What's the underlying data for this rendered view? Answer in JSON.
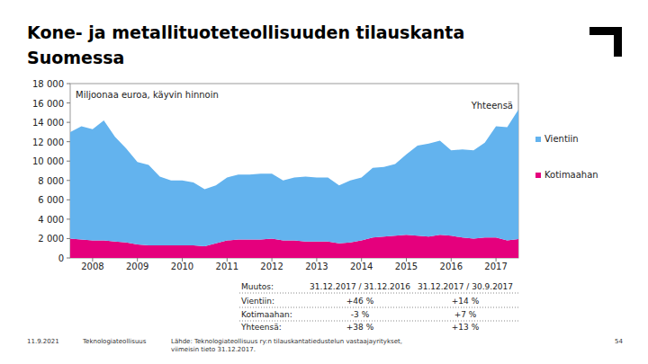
{
  "chart_data": {
    "type": "area",
    "title": [
      "Kone- ja metallituoteteollisuuden tilauskanta",
      "Suomessa"
    ],
    "annotations": [
      "Miljoonaa euroa, käyvin hinnoin",
      "Yhteensä"
    ],
    "stacked": true,
    "grid": false,
    "legend": "right",
    "categories": [
      null,
      null,
      "2008",
      null,
      null,
      null,
      "2009",
      null,
      null,
      null,
      "2010",
      null,
      null,
      null,
      "2011",
      null,
      null,
      null,
      "2012",
      null,
      null,
      null,
      "2013",
      null,
      null,
      null,
      "2014",
      null,
      null,
      null,
      "2015",
      null,
      null,
      null,
      "2016",
      null,
      null,
      null,
      "2017",
      null,
      null
    ],
    "series": [
      {
        "name": "Kotimaahan",
        "color": "#e5007d",
        "values": [
          2000,
          1900,
          1800,
          1800,
          1700,
          1600,
          1400,
          1300,
          1300,
          1300,
          1300,
          1300,
          1200,
          1500,
          1800,
          1900,
          1900,
          1900,
          2000,
          1800,
          1800,
          1700,
          1700,
          1700,
          1500,
          1600,
          1800,
          2100,
          2200,
          2300,
          2400,
          2300,
          2200,
          2400,
          2300,
          2100,
          2000,
          2100,
          2100,
          1800,
          1950
        ]
      },
      {
        "name": "Vientiin",
        "color": "#63b3ee",
        "values": [
          11000,
          11700,
          11500,
          12400,
          10800,
          9700,
          8500,
          8300,
          7100,
          6700,
          6700,
          6500,
          5900,
          6000,
          6500,
          6700,
          6700,
          6800,
          6700,
          6200,
          6500,
          6700,
          6600,
          6600,
          6000,
          6400,
          6500,
          7200,
          7200,
          7400,
          8300,
          9300,
          9600,
          9700,
          8800,
          9100,
          9100,
          9800,
          11500,
          11700,
          13350
        ]
      }
    ],
    "ylim": [
      0,
      18000
    ],
    "yticks": [
      0,
      {
        "value": 2000,
        "label": "2 000"
      },
      {
        "value": 4000,
        "label": "4 000"
      },
      {
        "value": 6000,
        "label": "6 000"
      },
      {
        "value": 8000,
        "label": "8 000"
      },
      {
        "value": 10000,
        "label": "10 000"
      },
      {
        "value": 12000,
        "label": "12 000"
      },
      {
        "value": 14000,
        "label": "14 000"
      },
      {
        "value": 16000,
        "label": "16 000"
      },
      {
        "value": 18000,
        "label": "18 000"
      }
    ]
  },
  "table": {
    "header": [
      "Muutos:",
      "31.12.2017 / 31.12.2016",
      "31.12.2017 / 30.9.2017"
    ],
    "rows": [
      [
        "Vientiin:",
        "+46 %",
        "+14 %"
      ],
      [
        "Kotimaahan:",
        "-3 %",
        "+7 %"
      ],
      [
        "Yhteensä:",
        "+38 %",
        "+13 %"
      ]
    ]
  },
  "footer": {
    "date": "11.9.2021",
    "org": "Teknologiateollisuus",
    "source": [
      "Lähde: Teknologiateollisuus ry:n tilauskantatiedustelun vastaajayritykset,",
      "viimeisin tieto 31.12.2017."
    ],
    "page": "54"
  }
}
